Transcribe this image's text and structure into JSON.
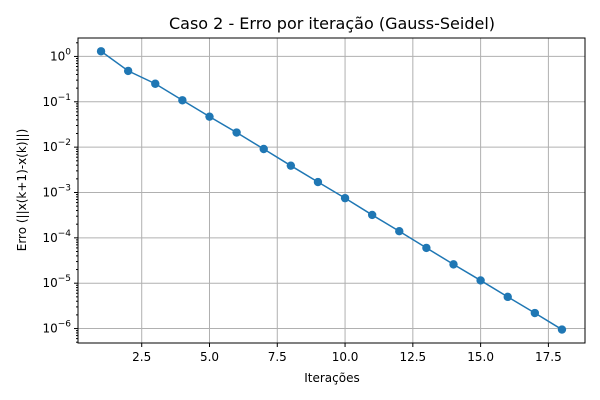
{
  "chart_data": {
    "type": "line",
    "title": "Caso 2 - Erro por iteração (Gauss-Seidel)",
    "xlabel": "Iterações",
    "ylabel": "Erro (||x(k+1)-x(k)||)",
    "x": [
      1,
      2,
      3,
      4,
      5,
      6,
      7,
      8,
      9,
      10,
      11,
      12,
      13,
      14,
      15,
      16,
      17,
      18
    ],
    "series": [
      {
        "color": "#1f77b4",
        "marker": "circle",
        "values": [
          1.3,
          0.48,
          0.25,
          0.108,
          0.047,
          0.021,
          0.0091,
          0.0039,
          0.0017,
          0.00075,
          0.00032,
          0.00014,
          6e-05,
          2.6e-05,
          1.15e-05,
          5e-06,
          2.2e-06,
          9.5e-07
        ]
      }
    ],
    "xticks": [
      "2.5",
      "5.0",
      "7.5",
      "10.0",
      "12.5",
      "15.0",
      "17.5"
    ],
    "xtick_values": [
      2.5,
      5.0,
      7.5,
      10.0,
      12.5,
      15.0,
      17.5
    ],
    "yticks": [
      {
        "base": "10",
        "exp": "0",
        "value": 1
      },
      {
        "base": "10",
        "exp": "−1",
        "value": 0.1
      },
      {
        "base": "10",
        "exp": "−2",
        "value": 0.01
      },
      {
        "base": "10",
        "exp": "−3",
        "value": 0.001
      },
      {
        "base": "10",
        "exp": "−4",
        "value": 0.0001
      },
      {
        "base": "10",
        "exp": "−5",
        "value": 1e-05
      },
      {
        "base": "10",
        "exp": "−6",
        "value": 1e-06
      }
    ],
    "xlim": [
      0.15,
      18.85
    ],
    "ylim": [
      4.8e-07,
      2.55
    ],
    "yscale": "log",
    "grid": true,
    "colors": {
      "axes": "#000000",
      "grid": "#b0b0b0",
      "background": "#ffffff"
    }
  }
}
